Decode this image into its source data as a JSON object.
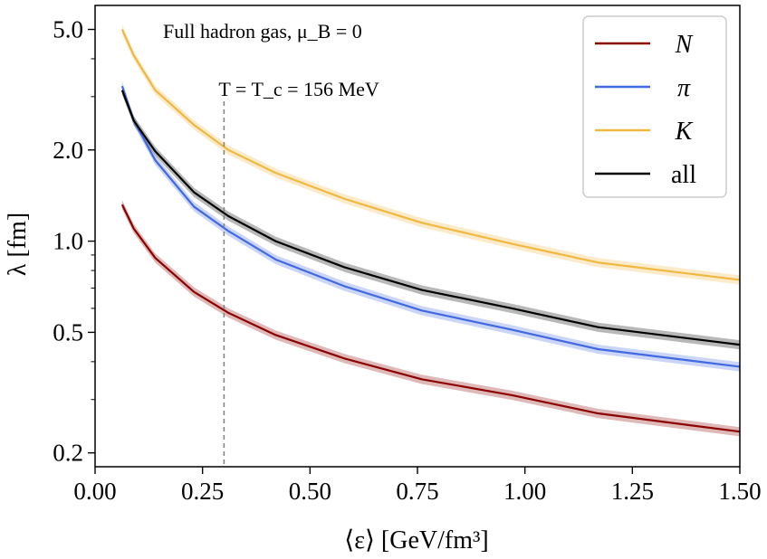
{
  "chart_data": {
    "type": "line",
    "title": "",
    "xlabel": "⟨ε⟩ [GeV/fm³]",
    "ylabel": "λ [fm]",
    "xlim": [
      0.0,
      1.5
    ],
    "ylim": [
      0.18,
      6.0
    ],
    "yscale": "log",
    "xticks": [
      0.0,
      0.25,
      0.5,
      0.75,
      1.0,
      1.25,
      1.5
    ],
    "xtick_labels": [
      "0.00",
      "0.25",
      "0.50",
      "0.75",
      "1.00",
      "1.25",
      "1.50"
    ],
    "yticks": [
      0.2,
      0.5,
      1.0,
      2.0,
      5.0
    ],
    "ytick_labels": [
      "0.2",
      "0.5",
      "1.0",
      "2.0",
      "5.0"
    ],
    "grid": false,
    "legend_position": "top-right",
    "annotation_text": "Full hadron gas, μ_B = 0",
    "vline": {
      "x": 0.3,
      "label": "T = T_c = 156 MeV",
      "color": "#808080"
    },
    "series": [
      {
        "name": "N",
        "label_style": "italic",
        "color": "#8b0000",
        "x": [
          0.063,
          0.09,
          0.14,
          0.23,
          0.31,
          0.42,
          0.58,
          0.76,
          0.97,
          1.17,
          1.5
        ],
        "y": [
          1.32,
          1.1,
          0.88,
          0.68,
          0.58,
          0.49,
          0.41,
          0.35,
          0.31,
          0.27,
          0.235
        ]
      },
      {
        "name": "π",
        "label_style": "italic",
        "color": "#4169e1",
        "x": [
          0.063,
          0.09,
          0.14,
          0.23,
          0.31,
          0.42,
          0.58,
          0.76,
          0.97,
          1.17,
          1.5
        ],
        "y": [
          3.25,
          2.5,
          1.85,
          1.3,
          1.08,
          0.87,
          0.71,
          0.59,
          0.51,
          0.44,
          0.385
        ]
      },
      {
        "name": "K",
        "label_style": "italic",
        "color": "#f0b840",
        "x": [
          0.063,
          0.09,
          0.14,
          0.23,
          0.31,
          0.42,
          0.58,
          0.76,
          0.97,
          1.17,
          1.5
        ],
        "y": [
          5.0,
          4.1,
          3.15,
          2.42,
          2.0,
          1.68,
          1.38,
          1.15,
          0.98,
          0.85,
          0.745
        ]
      },
      {
        "name": "all",
        "label_style": "upright",
        "color": "#000000",
        "x": [
          0.063,
          0.09,
          0.14,
          0.23,
          0.31,
          0.42,
          0.58,
          0.76,
          0.97,
          1.17,
          1.5
        ],
        "y": [
          3.15,
          2.5,
          1.98,
          1.45,
          1.21,
          1.0,
          0.82,
          0.69,
          0.6,
          0.52,
          0.455
        ]
      }
    ]
  }
}
